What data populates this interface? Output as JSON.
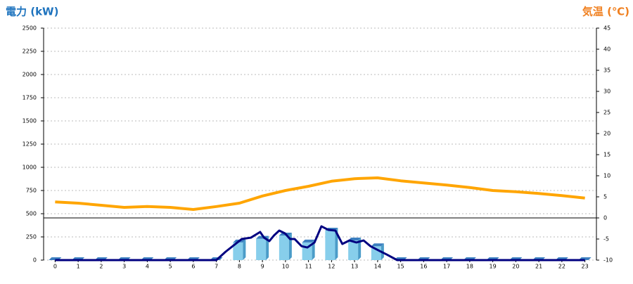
{
  "chart_data": {
    "type": "combo",
    "left_title": "電力 (kW)",
    "right_title": "気温 (℃)",
    "x": [
      0,
      1,
      2,
      3,
      4,
      5,
      6,
      7,
      8,
      9,
      10,
      11,
      12,
      13,
      14,
      15,
      16,
      17,
      18,
      19,
      20,
      21,
      22,
      23
    ],
    "xlim": [
      -0.5,
      23.5
    ],
    "xticks": [
      0,
      1,
      2,
      3,
      4,
      5,
      6,
      7,
      8,
      9,
      10,
      11,
      12,
      13,
      14,
      15,
      16,
      17,
      18,
      19,
      20,
      21,
      22,
      23
    ],
    "ylim": [
      0,
      2500
    ],
    "yticks": [
      0,
      250,
      500,
      750,
      1000,
      1250,
      1500,
      1750,
      2000,
      2250,
      2500
    ],
    "y2lim": [
      -10,
      45
    ],
    "y2ticks": [
      -10,
      -5,
      0,
      5,
      10,
      15,
      20,
      25,
      30,
      35,
      40,
      45
    ],
    "grid": true,
    "series": [
      {
        "type": "bar",
        "color": "#87ceeb",
        "values": [
          0,
          0,
          0,
          0,
          0,
          0,
          0,
          0,
          190,
          230,
          265,
          190,
          318,
          212,
          150,
          0,
          0,
          0,
          0,
          0,
          0,
          0,
          0,
          0
        ]
      },
      {
        "type": "line",
        "color": "#000080",
        "x": [
          0,
          7,
          7.4,
          8.1,
          8.5,
          8.9,
          9.07,
          9.3,
          9.5,
          9.73,
          9.98,
          10.2,
          10.4,
          10.7,
          10.95,
          11.26,
          11.56,
          11.86,
          12.17,
          12.47,
          12.78,
          13.08,
          13.39,
          13.69,
          14.09,
          14.39,
          14.85,
          23
        ],
        "values": [
          0,
          0,
          90,
          227,
          242,
          303,
          242,
          205,
          265,
          318,
          288,
          227,
          227,
          150,
          136,
          190,
          364,
          326,
          318,
          174,
          212,
          190,
          212,
          150,
          98,
          61,
          0,
          0
        ]
      },
      {
        "type": "line",
        "color": "#ffa500",
        "axis": "y2",
        "values": [
          3.8,
          3.5,
          3,
          2.5,
          2.7,
          2.5,
          2,
          2.7,
          3.5,
          5.2,
          6.5,
          7.5,
          8.7,
          9.3,
          9.5,
          8.8,
          8.3,
          7.8,
          7.2,
          6.5,
          6.2,
          5.8,
          5.3,
          4.7
        ]
      }
    ]
  }
}
